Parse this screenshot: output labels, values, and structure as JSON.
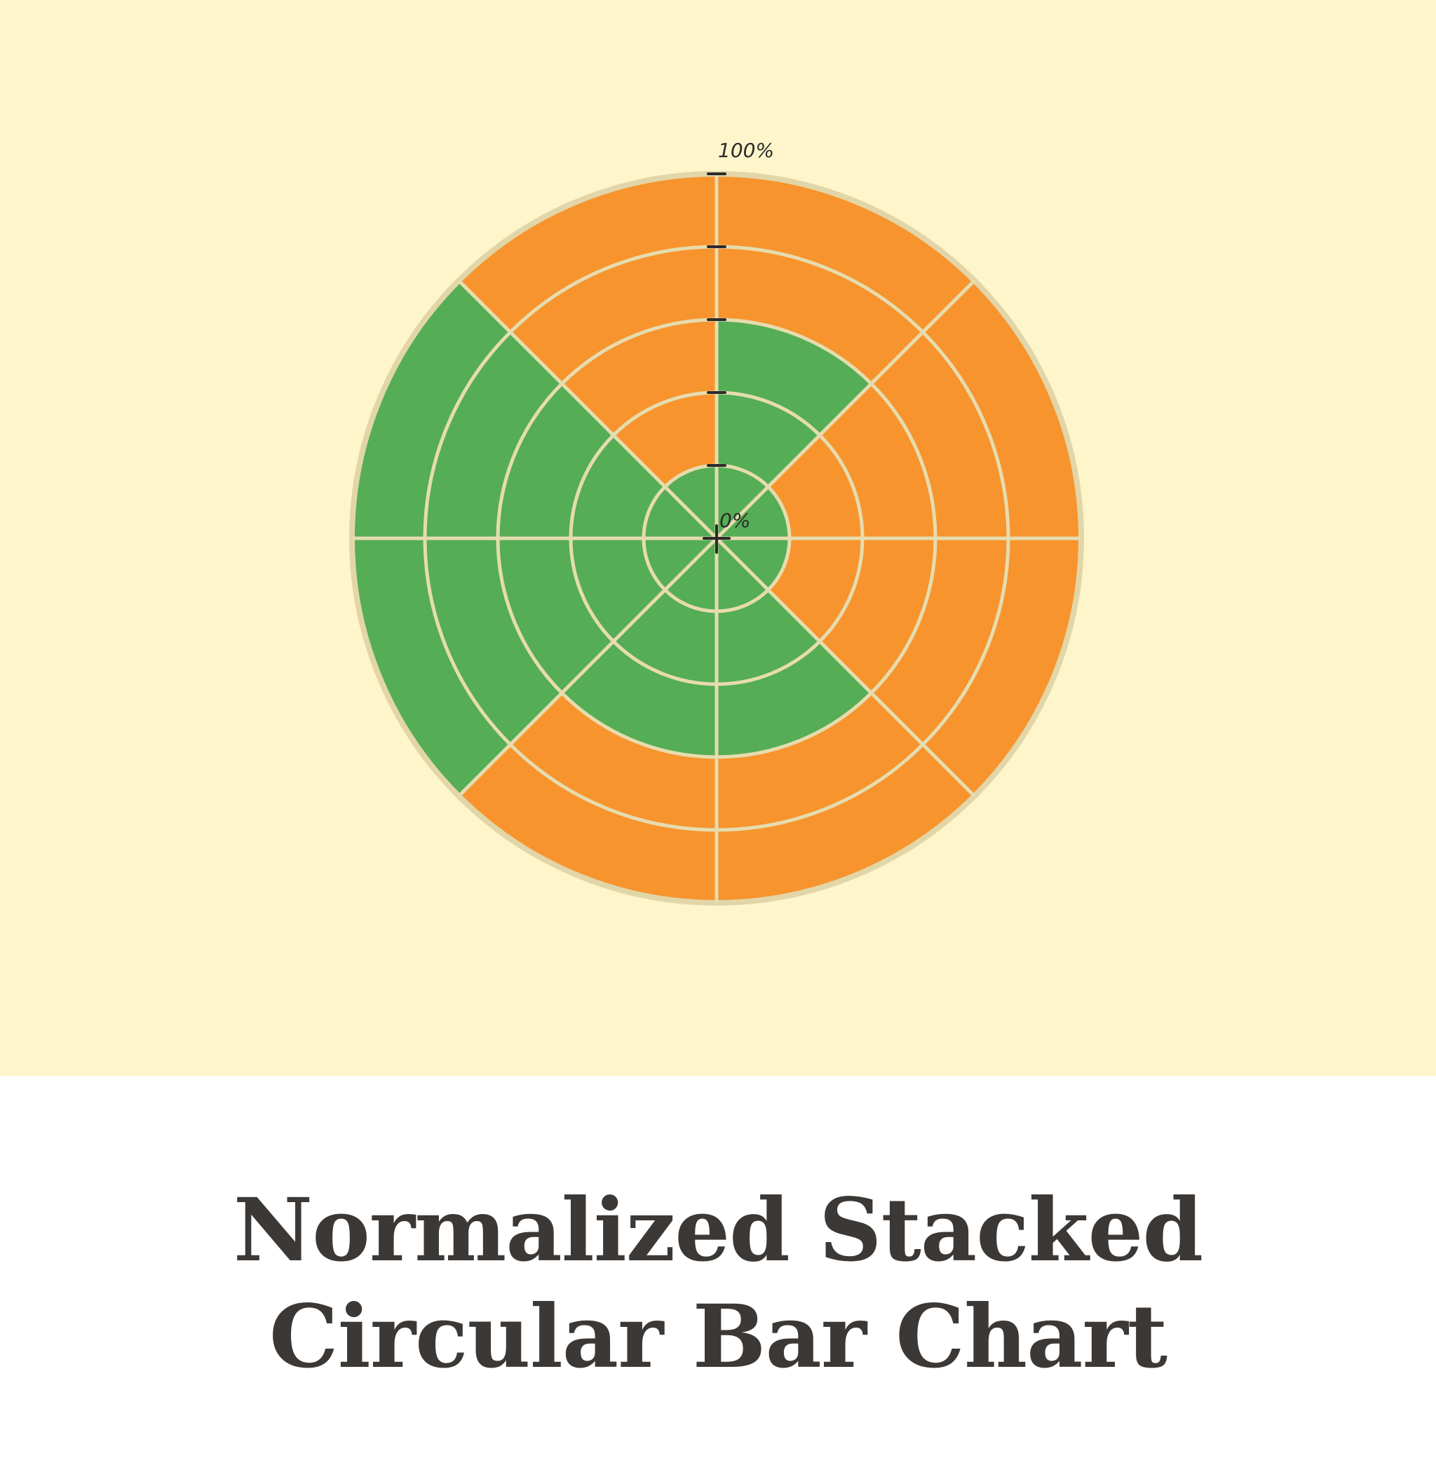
{
  "chart_data": {
    "type": "radial-stacked-bar",
    "title_lines": [
      "Normalized Stacked",
      "Circular Bar Chart"
    ],
    "categories": [
      "",
      "",
      "",
      "",
      "",
      "",
      "",
      ""
    ],
    "series": [
      {
        "values": [
          60,
          20,
          20,
          60,
          60,
          100,
          100,
          20
        ]
      },
      {
        "values": [
          40,
          80,
          80,
          40,
          40,
          0,
          0,
          80
        ]
      }
    ],
    "colors": [
      "#55ad55",
      "#f7942d"
    ],
    "rlim": [
      0,
      100
    ],
    "rticks": [
      0,
      20,
      40,
      60,
      80,
      100
    ],
    "tick_labels": {
      "min": "0%",
      "max": "100%"
    },
    "grid": true,
    "legend": "none"
  }
}
